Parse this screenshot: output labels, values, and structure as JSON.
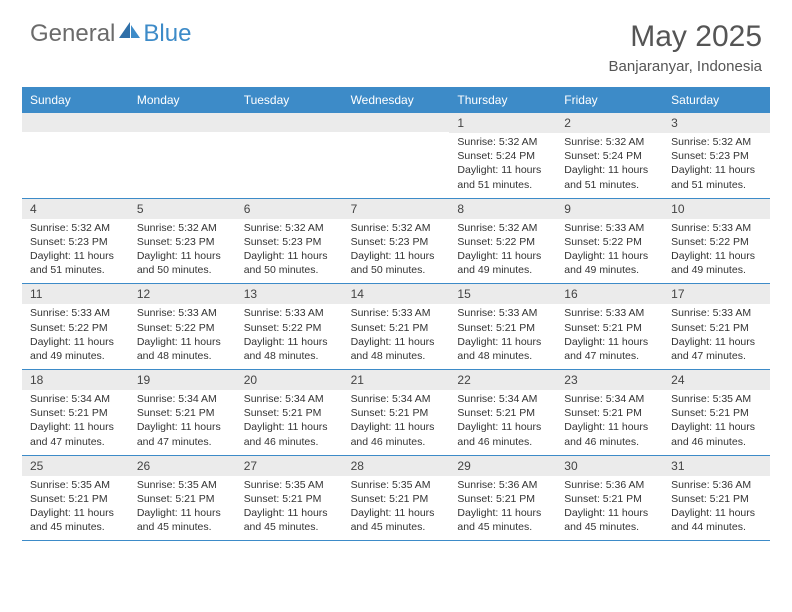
{
  "brand": {
    "part1": "General",
    "part2": "Blue"
  },
  "title": "May 2025",
  "location": "Banjaranyar, Indonesia",
  "colors": {
    "accent": "#3d8bc8",
    "header_text": "#ffffff",
    "daynum_bg": "#ebebeb",
    "body_text": "#333333",
    "title_text": "#555555"
  },
  "day_headers": [
    "Sunday",
    "Monday",
    "Tuesday",
    "Wednesday",
    "Thursday",
    "Friday",
    "Saturday"
  ],
  "weeks": [
    [
      {
        "n": "",
        "sr": "",
        "ss": "",
        "dl": ""
      },
      {
        "n": "",
        "sr": "",
        "ss": "",
        "dl": ""
      },
      {
        "n": "",
        "sr": "",
        "ss": "",
        "dl": ""
      },
      {
        "n": "",
        "sr": "",
        "ss": "",
        "dl": ""
      },
      {
        "n": "1",
        "sr": "Sunrise: 5:32 AM",
        "ss": "Sunset: 5:24 PM",
        "dl": "Daylight: 11 hours and 51 minutes."
      },
      {
        "n": "2",
        "sr": "Sunrise: 5:32 AM",
        "ss": "Sunset: 5:24 PM",
        "dl": "Daylight: 11 hours and 51 minutes."
      },
      {
        "n": "3",
        "sr": "Sunrise: 5:32 AM",
        "ss": "Sunset: 5:23 PM",
        "dl": "Daylight: 11 hours and 51 minutes."
      }
    ],
    [
      {
        "n": "4",
        "sr": "Sunrise: 5:32 AM",
        "ss": "Sunset: 5:23 PM",
        "dl": "Daylight: 11 hours and 51 minutes."
      },
      {
        "n": "5",
        "sr": "Sunrise: 5:32 AM",
        "ss": "Sunset: 5:23 PM",
        "dl": "Daylight: 11 hours and 50 minutes."
      },
      {
        "n": "6",
        "sr": "Sunrise: 5:32 AM",
        "ss": "Sunset: 5:23 PM",
        "dl": "Daylight: 11 hours and 50 minutes."
      },
      {
        "n": "7",
        "sr": "Sunrise: 5:32 AM",
        "ss": "Sunset: 5:23 PM",
        "dl": "Daylight: 11 hours and 50 minutes."
      },
      {
        "n": "8",
        "sr": "Sunrise: 5:32 AM",
        "ss": "Sunset: 5:22 PM",
        "dl": "Daylight: 11 hours and 49 minutes."
      },
      {
        "n": "9",
        "sr": "Sunrise: 5:33 AM",
        "ss": "Sunset: 5:22 PM",
        "dl": "Daylight: 11 hours and 49 minutes."
      },
      {
        "n": "10",
        "sr": "Sunrise: 5:33 AM",
        "ss": "Sunset: 5:22 PM",
        "dl": "Daylight: 11 hours and 49 minutes."
      }
    ],
    [
      {
        "n": "11",
        "sr": "Sunrise: 5:33 AM",
        "ss": "Sunset: 5:22 PM",
        "dl": "Daylight: 11 hours and 49 minutes."
      },
      {
        "n": "12",
        "sr": "Sunrise: 5:33 AM",
        "ss": "Sunset: 5:22 PM",
        "dl": "Daylight: 11 hours and 48 minutes."
      },
      {
        "n": "13",
        "sr": "Sunrise: 5:33 AM",
        "ss": "Sunset: 5:22 PM",
        "dl": "Daylight: 11 hours and 48 minutes."
      },
      {
        "n": "14",
        "sr": "Sunrise: 5:33 AM",
        "ss": "Sunset: 5:21 PM",
        "dl": "Daylight: 11 hours and 48 minutes."
      },
      {
        "n": "15",
        "sr": "Sunrise: 5:33 AM",
        "ss": "Sunset: 5:21 PM",
        "dl": "Daylight: 11 hours and 48 minutes."
      },
      {
        "n": "16",
        "sr": "Sunrise: 5:33 AM",
        "ss": "Sunset: 5:21 PM",
        "dl": "Daylight: 11 hours and 47 minutes."
      },
      {
        "n": "17",
        "sr": "Sunrise: 5:33 AM",
        "ss": "Sunset: 5:21 PM",
        "dl": "Daylight: 11 hours and 47 minutes."
      }
    ],
    [
      {
        "n": "18",
        "sr": "Sunrise: 5:34 AM",
        "ss": "Sunset: 5:21 PM",
        "dl": "Daylight: 11 hours and 47 minutes."
      },
      {
        "n": "19",
        "sr": "Sunrise: 5:34 AM",
        "ss": "Sunset: 5:21 PM",
        "dl": "Daylight: 11 hours and 47 minutes."
      },
      {
        "n": "20",
        "sr": "Sunrise: 5:34 AM",
        "ss": "Sunset: 5:21 PM",
        "dl": "Daylight: 11 hours and 46 minutes."
      },
      {
        "n": "21",
        "sr": "Sunrise: 5:34 AM",
        "ss": "Sunset: 5:21 PM",
        "dl": "Daylight: 11 hours and 46 minutes."
      },
      {
        "n": "22",
        "sr": "Sunrise: 5:34 AM",
        "ss": "Sunset: 5:21 PM",
        "dl": "Daylight: 11 hours and 46 minutes."
      },
      {
        "n": "23",
        "sr": "Sunrise: 5:34 AM",
        "ss": "Sunset: 5:21 PM",
        "dl": "Daylight: 11 hours and 46 minutes."
      },
      {
        "n": "24",
        "sr": "Sunrise: 5:35 AM",
        "ss": "Sunset: 5:21 PM",
        "dl": "Daylight: 11 hours and 46 minutes."
      }
    ],
    [
      {
        "n": "25",
        "sr": "Sunrise: 5:35 AM",
        "ss": "Sunset: 5:21 PM",
        "dl": "Daylight: 11 hours and 45 minutes."
      },
      {
        "n": "26",
        "sr": "Sunrise: 5:35 AM",
        "ss": "Sunset: 5:21 PM",
        "dl": "Daylight: 11 hours and 45 minutes."
      },
      {
        "n": "27",
        "sr": "Sunrise: 5:35 AM",
        "ss": "Sunset: 5:21 PM",
        "dl": "Daylight: 11 hours and 45 minutes."
      },
      {
        "n": "28",
        "sr": "Sunrise: 5:35 AM",
        "ss": "Sunset: 5:21 PM",
        "dl": "Daylight: 11 hours and 45 minutes."
      },
      {
        "n": "29",
        "sr": "Sunrise: 5:36 AM",
        "ss": "Sunset: 5:21 PM",
        "dl": "Daylight: 11 hours and 45 minutes."
      },
      {
        "n": "30",
        "sr": "Sunrise: 5:36 AM",
        "ss": "Sunset: 5:21 PM",
        "dl": "Daylight: 11 hours and 45 minutes."
      },
      {
        "n": "31",
        "sr": "Sunrise: 5:36 AM",
        "ss": "Sunset: 5:21 PM",
        "dl": "Daylight: 11 hours and 44 minutes."
      }
    ]
  ]
}
